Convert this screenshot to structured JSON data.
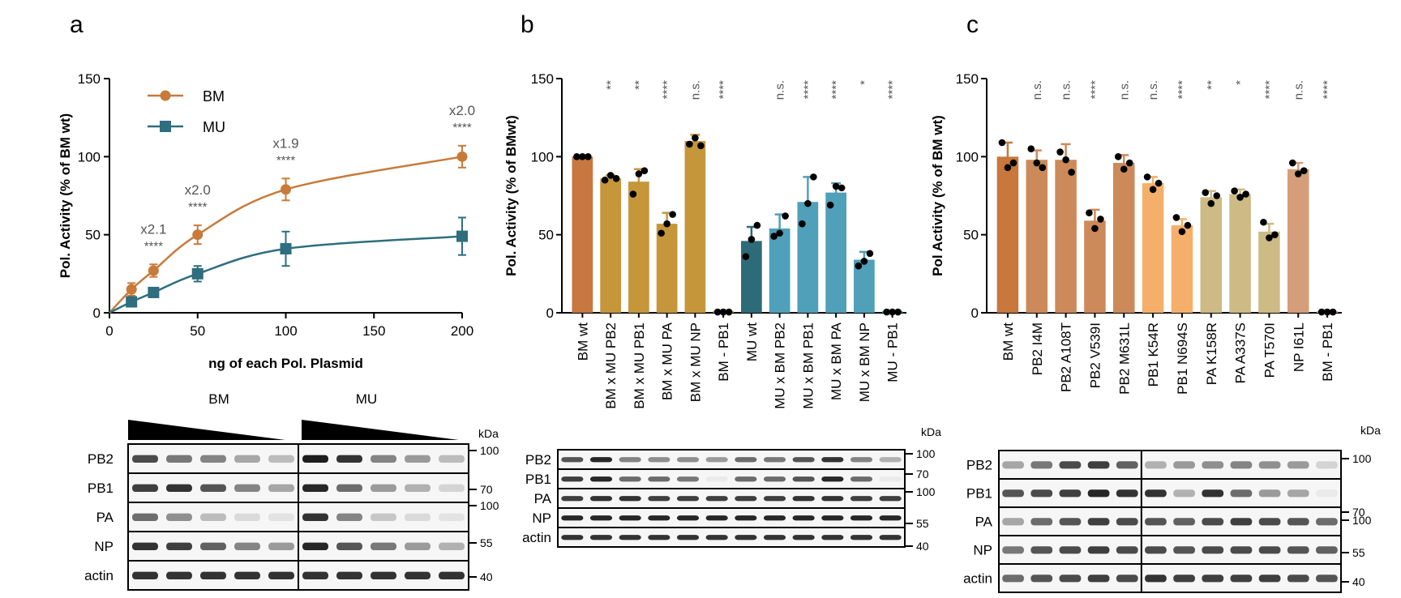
{
  "panels": {
    "a": {
      "letter": "a",
      "blot_groups": [
        "BM",
        "MU"
      ],
      "blot_rows": [
        "PB2",
        "PB1",
        "PA",
        "NP",
        "actin"
      ],
      "kda_header": "kDa",
      "kda_markers": [
        "100",
        "70",
        "100",
        "55",
        "40"
      ]
    },
    "b": {
      "letter": "b",
      "blot_rows": [
        "PB2",
        "PB1",
        "PA",
        "NP",
        "actin"
      ],
      "kda_header": "kDa",
      "kda_markers": [
        "100",
        "70",
        "100",
        "55",
        "40"
      ]
    },
    "c": {
      "letter": "c",
      "blot_rows": [
        "PB2",
        "PB1",
        "PA",
        "NP",
        "actin"
      ],
      "kda_header": "kDa",
      "kda_markers": [
        "100",
        "70",
        "100",
        "55",
        "40"
      ]
    }
  },
  "colors": {
    "bm_line": "#C87A3A",
    "mu_line": "#2E6E7E",
    "error": "#444444"
  },
  "chart_data": [
    {
      "id": "a",
      "type": "line",
      "xlabel": "ng of each Pol. Plasmid",
      "ylabel": "Pol. Activity (% of BM wt)",
      "xlim": [
        0,
        200
      ],
      "ylim": [
        0,
        150
      ],
      "xticks": [
        0,
        50,
        100,
        150,
        200
      ],
      "yticks": [
        0,
        50,
        100,
        150
      ],
      "legend_position": "top-left",
      "series": [
        {
          "name": "BM",
          "color": "#C87A3A",
          "marker": "circle",
          "x": [
            12.5,
            25,
            50,
            100,
            200
          ],
          "y": [
            15,
            27,
            50,
            79,
            100
          ],
          "err": [
            4,
            4,
            6,
            7,
            7
          ]
        },
        {
          "name": "MU",
          "color": "#2E6E7E",
          "marker": "square",
          "x": [
            12.5,
            25,
            50,
            100,
            200
          ],
          "y": [
            7,
            13,
            25,
            41,
            49
          ],
          "err": [
            3,
            2,
            5,
            11,
            12
          ]
        }
      ],
      "annotations": [
        {
          "x": 25,
          "fold": "x2.1",
          "sig": "****"
        },
        {
          "x": 50,
          "fold": "x2.0",
          "sig": "****"
        },
        {
          "x": 100,
          "fold": "x1.9",
          "sig": "****"
        },
        {
          "x": 200,
          "fold": "x2.0",
          "sig": "****"
        }
      ]
    },
    {
      "id": "b",
      "type": "bar",
      "ylabel": "Pol. Activity (% of BMwt)",
      "ylim": [
        0,
        150
      ],
      "yticks": [
        0,
        50,
        100,
        150
      ],
      "categories": [
        "BM wt",
        "BM x MU PB2",
        "BM x MU PB1",
        "BM x MU PA",
        "BM x MU NP",
        "BM - PB1",
        "MU wt",
        "MU x BM PB2",
        "MU x BM PB1",
        "MU x BM PA",
        "MU x BM NP",
        "MU - PB1"
      ],
      "values": [
        100,
        86,
        84,
        57,
        110,
        1,
        46,
        54,
        71,
        77,
        34,
        1
      ],
      "errors": [
        0,
        2,
        8,
        7,
        4,
        0,
        9,
        9,
        16,
        6,
        5,
        0
      ],
      "points": [
        [
          100,
          100,
          100
        ],
        [
          85,
          88,
          86
        ],
        [
          76,
          89,
          91
        ],
        [
          51,
          57,
          63
        ],
        [
          108,
          112,
          107
        ],
        [
          0.5,
          0.5,
          0.5
        ],
        [
          36,
          47,
          56
        ],
        [
          49,
          51,
          62
        ],
        [
          57,
          70,
          87
        ],
        [
          69,
          81,
          80
        ],
        [
          30,
          33,
          38
        ],
        [
          0.5,
          0.5,
          0.5
        ]
      ],
      "colors": [
        "#C7773F",
        "#C5963A",
        "#C5963A",
        "#C5963A",
        "#C5963A",
        "#C5963A",
        "#2E6B78",
        "#4FA0B8",
        "#4FA0B8",
        "#4FA0B8",
        "#4FA0B8",
        "#4FA0B8"
      ],
      "significance": [
        "",
        "**",
        "**",
        "****",
        "n.s.",
        "****",
        "",
        "n.s.",
        "****",
        "****",
        "*",
        "****"
      ]
    },
    {
      "id": "c",
      "type": "bar",
      "ylabel": "Pol Activity (% of BM wt)",
      "ylim": [
        0,
        150
      ],
      "yticks": [
        0,
        50,
        100,
        150
      ],
      "categories": [
        "BM wt",
        "PB2 I4M",
        "PB2 A108T",
        "PB2 V539I",
        "PB2 M631L",
        "PB1 K54R",
        "PB1 N694S",
        "PA K158R",
        "PA A337S",
        "PA T570I",
        "NP I61L",
        "BM - PB1"
      ],
      "values": [
        100,
        98,
        98,
        59,
        96,
        83,
        56,
        74,
        76,
        52,
        92,
        1
      ],
      "errors": [
        9,
        6,
        10,
        7,
        5,
        4,
        4,
        4,
        3,
        5,
        4,
        0
      ],
      "points": [
        [
          109,
          93,
          96
        ],
        [
          105,
          96,
          93
        ],
        [
          103,
          98,
          90
        ],
        [
          64,
          54,
          60
        ],
        [
          100,
          92,
          96
        ],
        [
          87,
          79,
          83
        ],
        [
          61,
          52,
          56
        ],
        [
          77,
          70,
          75
        ],
        [
          78,
          74,
          76
        ],
        [
          58,
          48,
          50
        ],
        [
          96,
          89,
          91
        ],
        [
          0.5,
          0.5,
          0.5
        ]
      ],
      "colors": [
        "#C8773D",
        "#CC8A5A",
        "#CC8A5A",
        "#CC8A5A",
        "#CC8A5A",
        "#F4B06A",
        "#F4B06A",
        "#CDBA84",
        "#CDBA84",
        "#CDBA84",
        "#D49E7A",
        "#D49E7A"
      ],
      "significance": [
        "",
        "n.s.",
        "n.s.",
        "****",
        "n.s.",
        "n.s.",
        "****",
        "**",
        "*",
        "****",
        "n.s.",
        "****"
      ]
    }
  ]
}
